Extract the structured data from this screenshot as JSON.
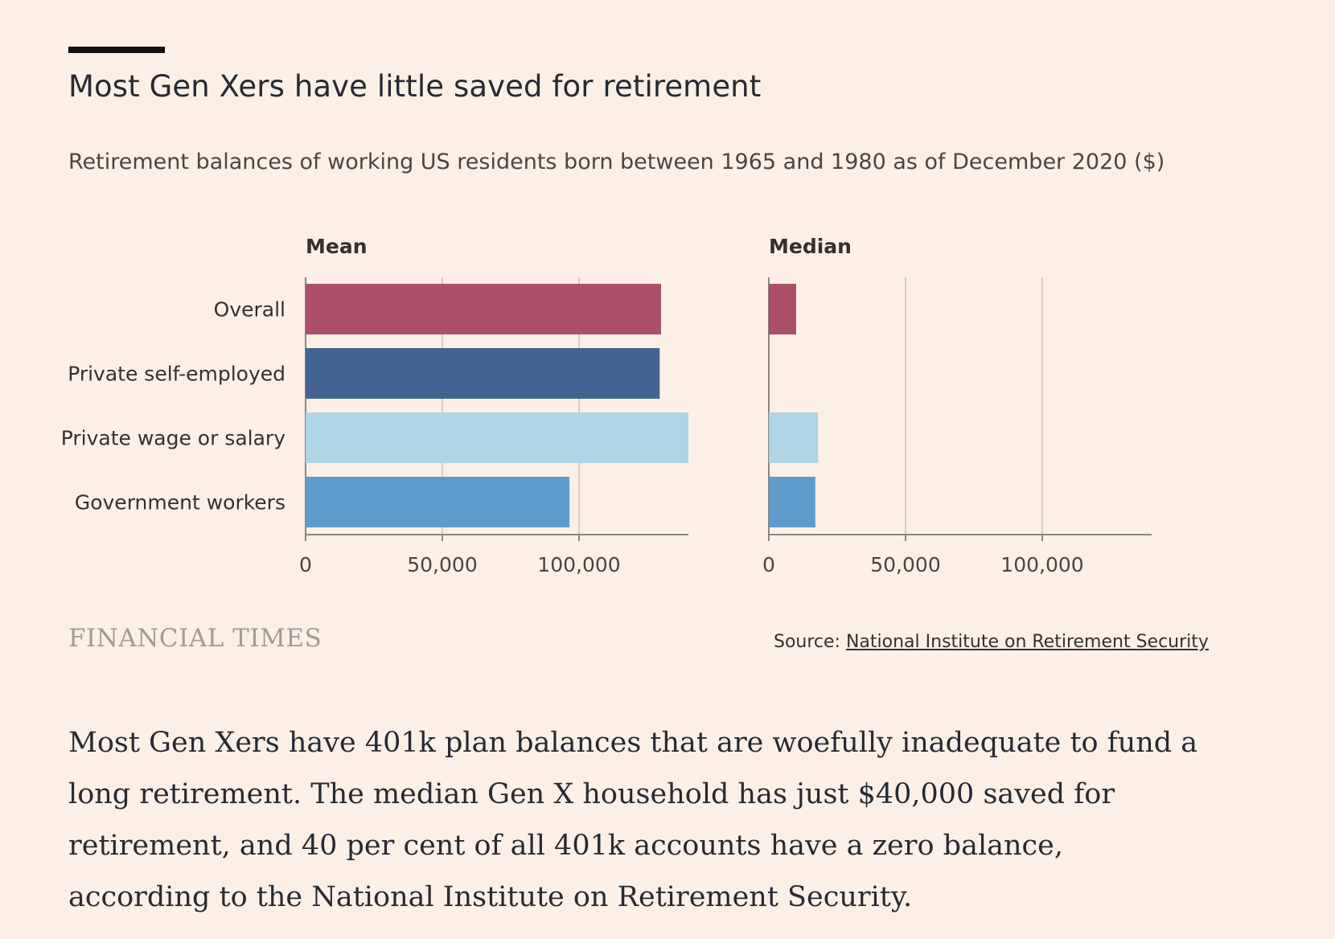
{
  "header": {
    "title": "Most Gen Xers have little saved for retirement",
    "subtitle": "Retirement balances of working US residents born between 1965 and 1980 as of December 2020 ($)"
  },
  "chart_data": [
    {
      "type": "bar",
      "orientation": "horizontal",
      "title": "Mean",
      "categories": [
        "Overall",
        "Private self-employed",
        "Private wage or salary",
        "Government workers"
      ],
      "values": [
        130000,
        129500,
        140000,
        96500
      ],
      "colors": [
        "#a84a63",
        "#3d5f8f",
        "#acd3e5",
        "#5a98cb"
      ],
      "xlim": [
        0,
        140000
      ],
      "ticks": [
        0,
        50000,
        100000
      ],
      "tick_labels": [
        "0",
        "50,000",
        "100,000"
      ],
      "grid": true
    },
    {
      "type": "bar",
      "orientation": "horizontal",
      "title": "Median",
      "categories": [
        "Overall",
        "Private self-employed",
        "Private wage or salary",
        "Government workers"
      ],
      "values": [
        10000,
        0,
        18000,
        17000
      ],
      "colors": [
        "#a84a63",
        "#3d5f8f",
        "#acd3e5",
        "#5a98cb"
      ],
      "xlim": [
        0,
        140000
      ],
      "ticks": [
        0,
        50000,
        100000
      ],
      "tick_labels": [
        "0",
        "50,000",
        "100,000"
      ],
      "grid": true
    }
  ],
  "footer": {
    "brand": "FINANCIAL TIMES",
    "source_prefix": "Source: ",
    "source_link": "National Institute on Retirement Security"
  },
  "article": {
    "paragraph": "Most Gen Xers have 401k plan balances that are woefully inadequate to fund a long retirement. The median Gen X household has just $40,000 saved for retirement, and 40 per cent of all 401k accounts have a zero balance, according to the National Institute on Retirement Security."
  },
  "colors": {
    "background": "#fcf0e6",
    "grid": "#d9ccc1",
    "axis": "#8a8580"
  }
}
